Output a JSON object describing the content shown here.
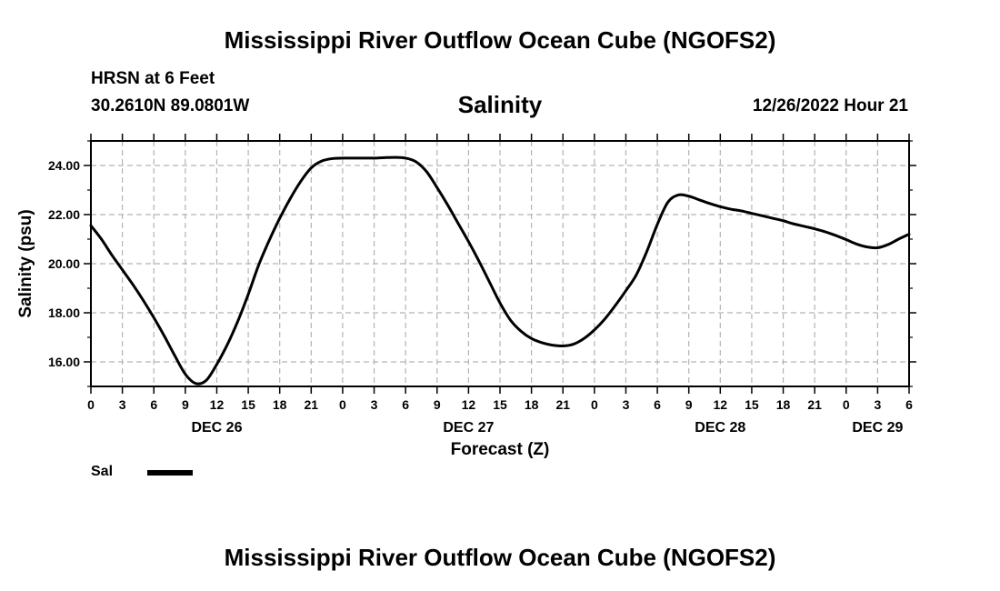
{
  "header": {
    "title": "Mississippi River Outflow Ocean Cube (NGOFS2)",
    "station_name": "HRSN at 6 Feet",
    "coordinates": "30.2610N  89.0801W",
    "variable": "Salinity",
    "datetime": "12/26/2022 Hour 21"
  },
  "footer": {
    "title": "Mississippi River Outflow Ocean Cube (NGOFS2)"
  },
  "legend": {
    "label": "Sal"
  },
  "colors": {
    "line": "#000000",
    "grid": "#b4b4b4"
  },
  "chart_data": {
    "type": "line",
    "title": "Salinity",
    "xlabel": "Forecast (Z)",
    "ylabel": "Salinity (psu)",
    "xlim": [
      0,
      78
    ],
    "ylim": [
      15.0,
      25.0
    ],
    "grid": true,
    "x_tick_values": [
      0,
      3,
      6,
      9,
      12,
      15,
      18,
      21,
      24,
      27,
      30,
      33,
      36,
      39,
      42,
      45,
      48,
      51,
      54,
      57,
      60,
      63,
      66,
      69,
      72,
      75,
      78
    ],
    "x_tick_labels": [
      "0",
      "3",
      "6",
      "9",
      "12",
      "15",
      "18",
      "21",
      "0",
      "3",
      "6",
      "9",
      "12",
      "15",
      "18",
      "21",
      "0",
      "3",
      "6",
      "9",
      "12",
      "15",
      "18",
      "21",
      "0",
      "3",
      "6"
    ],
    "day_labels": [
      {
        "label": "DEC 26",
        "x": 12
      },
      {
        "label": "DEC 27",
        "x": 36
      },
      {
        "label": "DEC 28",
        "x": 60
      },
      {
        "label": "DEC 29",
        "x": 75
      }
    ],
    "y_tick_values": [
      16,
      18,
      20,
      22,
      24
    ],
    "y_tick_labels": [
      "16.00",
      "18.00",
      "20.00",
      "22.00",
      "24.00"
    ],
    "series": [
      {
        "name": "Sal",
        "x": [
          0,
          1,
          2,
          3,
          4,
          5,
          6,
          7,
          8,
          9,
          10,
          11,
          12,
          13,
          14,
          15,
          16,
          17,
          18,
          19,
          20,
          21,
          22,
          23,
          24,
          25,
          26,
          27,
          28,
          29,
          30,
          31,
          32,
          33,
          34,
          35,
          36,
          37,
          38,
          39,
          40,
          41,
          42,
          43,
          44,
          45,
          46,
          47,
          48,
          49,
          50,
          51,
          52,
          53,
          54,
          55,
          56,
          57,
          58,
          59,
          60,
          61,
          62,
          63,
          64,
          65,
          66,
          67,
          68,
          69,
          70,
          71,
          72,
          73,
          74,
          75,
          76,
          77,
          78
        ],
        "values": [
          21.55,
          21.0,
          20.35,
          19.75,
          19.15,
          18.5,
          17.8,
          17.05,
          16.25,
          15.5,
          15.12,
          15.25,
          15.9,
          16.7,
          17.65,
          18.75,
          19.95,
          20.95,
          21.85,
          22.65,
          23.35,
          23.9,
          24.18,
          24.28,
          24.3,
          24.3,
          24.3,
          24.3,
          24.32,
          24.33,
          24.3,
          24.15,
          23.75,
          23.1,
          22.4,
          21.65,
          20.9,
          20.1,
          19.25,
          18.4,
          17.7,
          17.25,
          16.95,
          16.78,
          16.68,
          16.65,
          16.72,
          16.95,
          17.3,
          17.75,
          18.3,
          18.9,
          19.55,
          20.5,
          21.6,
          22.5,
          22.8,
          22.75,
          22.6,
          22.45,
          22.32,
          22.22,
          22.15,
          22.05,
          21.95,
          21.85,
          21.75,
          21.62,
          21.52,
          21.42,
          21.3,
          21.15,
          20.98,
          20.8,
          20.68,
          20.65,
          20.78,
          21.0,
          21.2
        ]
      }
    ]
  }
}
